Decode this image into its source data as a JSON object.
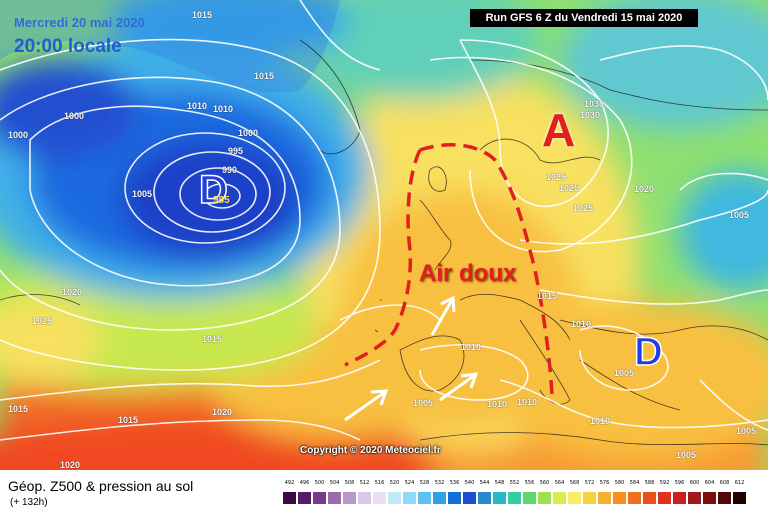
{
  "header": {
    "date_line": "Mercredi 20 mai 2020",
    "time_line": "20:00 locale",
    "run_info": "Run GFS 6 Z du Vendredi 15 mai 2020"
  },
  "map": {
    "symbols": {
      "high_A": "A",
      "low_D_atlantic": "D",
      "low_D_east": "D",
      "low_center_value": "985"
    },
    "annotation": "Air doux",
    "copyright": "Copyright © 2020 Meteociel.fr",
    "isobar_labels": {
      "l1015_top": "1015",
      "l1015_nw": "1015",
      "l1000_w": "1000",
      "l1000_nw": "1000",
      "l1010_a": "1010",
      "l1010_b": "1010",
      "l1000_c": "1000",
      "l995": "995",
      "l990": "990",
      "l1005_w": "1005",
      "l1030_a": "1030",
      "l1030_b": "1030",
      "l1025_a": "1025",
      "l1025_b": "1025",
      "l1025_c": "1025",
      "l1020_ne": "1020",
      "l1005_ne": "1005",
      "l1020_w": "1020",
      "l1025_w": "1025",
      "l1015_mid": "1015",
      "l1015_eu": "1015",
      "l1010_eu": "1010",
      "l1005_e": "1005",
      "l1010_italy": "1010",
      "l1005_sp": "1005",
      "l1010_sp": "1010",
      "l1010_med": "1010",
      "l1015_sw": "1015",
      "l1020_sw": "1020",
      "l1015_atl": "1015",
      "l1020_afr": "1020",
      "l1005_se": "1005",
      "l1010_se": "1010",
      "l1005_ee": "1005"
    },
    "colors": {
      "isobar": "#ffffff",
      "annotation": "#e02020",
      "low_symbol": "#1f3fe0",
      "high_symbol": "#e02020"
    }
  },
  "footer": {
    "title": "Géop. Z500 & pression au sol",
    "subtitle": "(+ 132h)"
  },
  "legend": {
    "labels": [
      "492",
      "496",
      "500",
      "504",
      "508",
      "512",
      "516",
      "520",
      "524",
      "528",
      "532",
      "536",
      "540",
      "544",
      "548",
      "552",
      "556",
      "560",
      "564",
      "568",
      "572",
      "576",
      "580",
      "584",
      "588",
      "592",
      "596",
      "600",
      "604",
      "608",
      "612"
    ],
    "colors": [
      "#3a0a45",
      "#5a1a6a",
      "#7a3a8a",
      "#9a6aaa",
      "#b89ac8",
      "#d8c8e8",
      "#e8e0f0",
      "#bfe8f8",
      "#90d8f8",
      "#60c0f0",
      "#30a0e8",
      "#1070d8",
      "#1f4fd0",
      "#2a8ad0",
      "#2ab8c8",
      "#30d0a0",
      "#60d870",
      "#9ee050",
      "#d8ec50",
      "#f8f060",
      "#f8d040",
      "#f8b030",
      "#f89020",
      "#f07020",
      "#e85020",
      "#e03020",
      "#c82020",
      "#a01818",
      "#781010",
      "#500808",
      "#200000"
    ]
  }
}
